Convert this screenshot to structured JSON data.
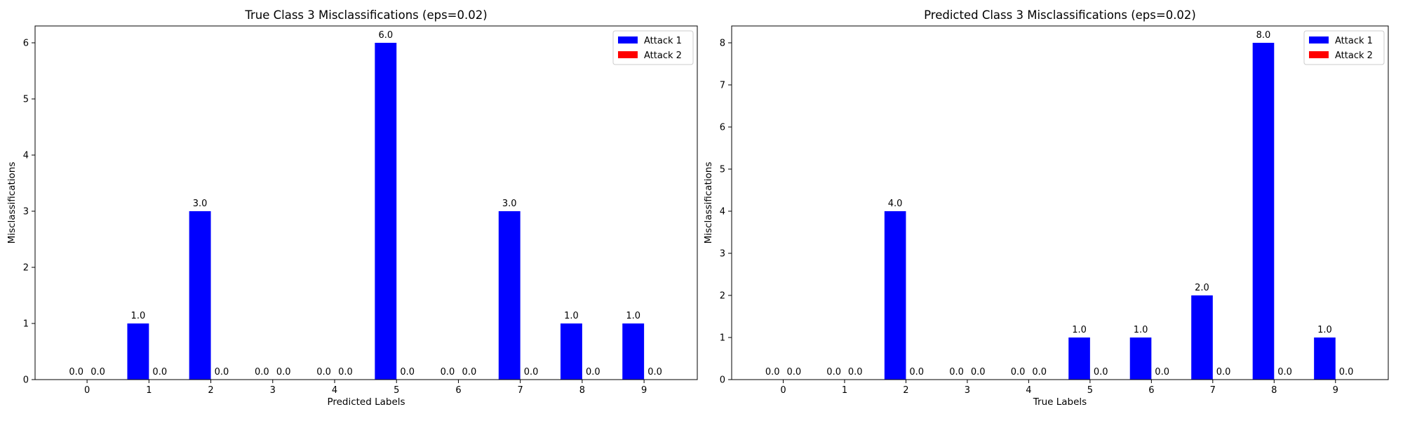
{
  "chart_data": [
    {
      "type": "bar",
      "title": "True Class 3 Misclassifications (eps=0.02)",
      "xlabel": "Predicted Labels",
      "ylabel": "Misclassifications",
      "categories": [
        "0",
        "1",
        "2",
        "3",
        "4",
        "5",
        "6",
        "7",
        "8",
        "9"
      ],
      "ylim": [
        0,
        6.3
      ],
      "yticks": [
        0,
        1,
        2,
        3,
        4,
        5,
        6
      ],
      "series": [
        {
          "name": "Attack 1",
          "color": "#0000ff",
          "values": [
            0,
            1,
            3,
            0,
            0,
            6,
            0,
            3,
            1,
            1
          ],
          "labels": [
            "0.0",
            "1.0",
            "3.0",
            "0.0",
            "0.0",
            "6.0",
            "0.0",
            "3.0",
            "1.0",
            "1.0"
          ]
        },
        {
          "name": "Attack 2",
          "color": "#ff0000",
          "values": [
            0,
            0,
            0,
            0,
            0,
            0,
            0,
            0,
            0,
            0
          ],
          "labels": [
            "0.0",
            "0.0",
            "0.0",
            "0.0",
            "0.0",
            "0.0",
            "0.0",
            "0.0",
            "0.0",
            "0.0"
          ]
        }
      ],
      "legend": "top-right",
      "grid": false
    },
    {
      "type": "bar",
      "title": "Predicted Class 3 Misclassifications (eps=0.02)",
      "xlabel": "True Labels",
      "ylabel": "Misclassifications",
      "categories": [
        "0",
        "1",
        "2",
        "3",
        "4",
        "5",
        "6",
        "7",
        "8",
        "9"
      ],
      "ylim": [
        0,
        8.4
      ],
      "yticks": [
        0,
        1,
        2,
        3,
        4,
        5,
        6,
        7,
        8
      ],
      "series": [
        {
          "name": "Attack 1",
          "color": "#0000ff",
          "values": [
            0,
            0,
            4,
            0,
            0,
            1,
            1,
            2,
            8,
            1
          ],
          "labels": [
            "0.0",
            "0.0",
            "4.0",
            "0.0",
            "0.0",
            "1.0",
            "1.0",
            "2.0",
            "8.0",
            "1.0"
          ]
        },
        {
          "name": "Attack 2",
          "color": "#ff0000",
          "values": [
            0,
            0,
            0,
            0,
            0,
            0,
            0,
            0,
            0,
            0
          ],
          "labels": [
            "0.0",
            "0.0",
            "0.0",
            "0.0",
            "0.0",
            "0.0",
            "0.0",
            "0.0",
            "0.0",
            "0.0"
          ]
        }
      ],
      "legend": "top-right",
      "grid": false
    }
  ]
}
